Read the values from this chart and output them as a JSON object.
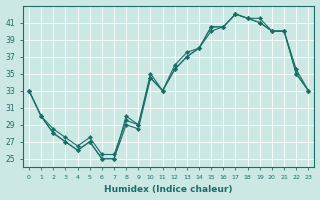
{
  "xlabel": "Humidex (Indice chaleur)",
  "xlim": [
    -0.5,
    23.5
  ],
  "ylim": [
    24,
    43
  ],
  "yticks": [
    25,
    27,
    29,
    31,
    33,
    35,
    37,
    39,
    41
  ],
  "xticks": [
    0,
    1,
    2,
    3,
    4,
    5,
    6,
    7,
    8,
    9,
    10,
    11,
    12,
    13,
    14,
    15,
    16,
    17,
    18,
    19,
    20,
    21,
    22,
    23
  ],
  "bg_color": "#cce8e4",
  "line_color": "#1a6e65",
  "grid_color": "#ffffff",
  "line1_x": [
    0,
    1,
    2,
    3,
    4,
    5,
    6,
    7,
    8,
    9,
    10,
    11,
    12,
    13,
    14,
    15,
    16,
    17,
    18,
    19,
    20,
    21,
    22,
    23
  ],
  "line1_y": [
    33,
    30,
    28,
    27,
    26,
    27,
    25,
    25,
    30,
    29,
    35,
    33,
    36,
    37.5,
    38,
    40.5,
    40.5,
    42,
    41.5,
    41,
    40,
    40,
    35,
    33
  ],
  "line2_x": [
    0,
    1,
    2,
    3,
    4,
    5,
    6,
    7,
    8,
    9,
    10,
    11,
    12,
    13,
    14,
    15,
    16,
    17,
    18,
    19,
    20,
    21,
    22,
    23
  ],
  "line2_y": [
    33,
    30,
    28,
    27,
    26,
    27,
    25,
    25,
    29,
    28.5,
    34.5,
    33,
    35.5,
    37,
    38,
    40,
    40.5,
    42,
    41.5,
    41.5,
    40,
    40,
    35.5,
    33
  ],
  "line3_x": [
    0,
    1,
    2,
    3,
    4,
    5,
    6,
    7,
    8,
    9,
    10,
    11,
    12,
    13,
    14,
    15,
    16,
    17,
    18,
    19,
    20,
    21,
    22,
    23
  ],
  "line3_y": [
    33,
    30,
    28.5,
    27.5,
    26.5,
    27.5,
    25.5,
    25.5,
    29.5,
    29,
    34.5,
    33,
    35.5,
    37,
    38,
    40.5,
    40.5,
    42,
    41.5,
    41,
    40,
    40,
    35,
    33
  ]
}
